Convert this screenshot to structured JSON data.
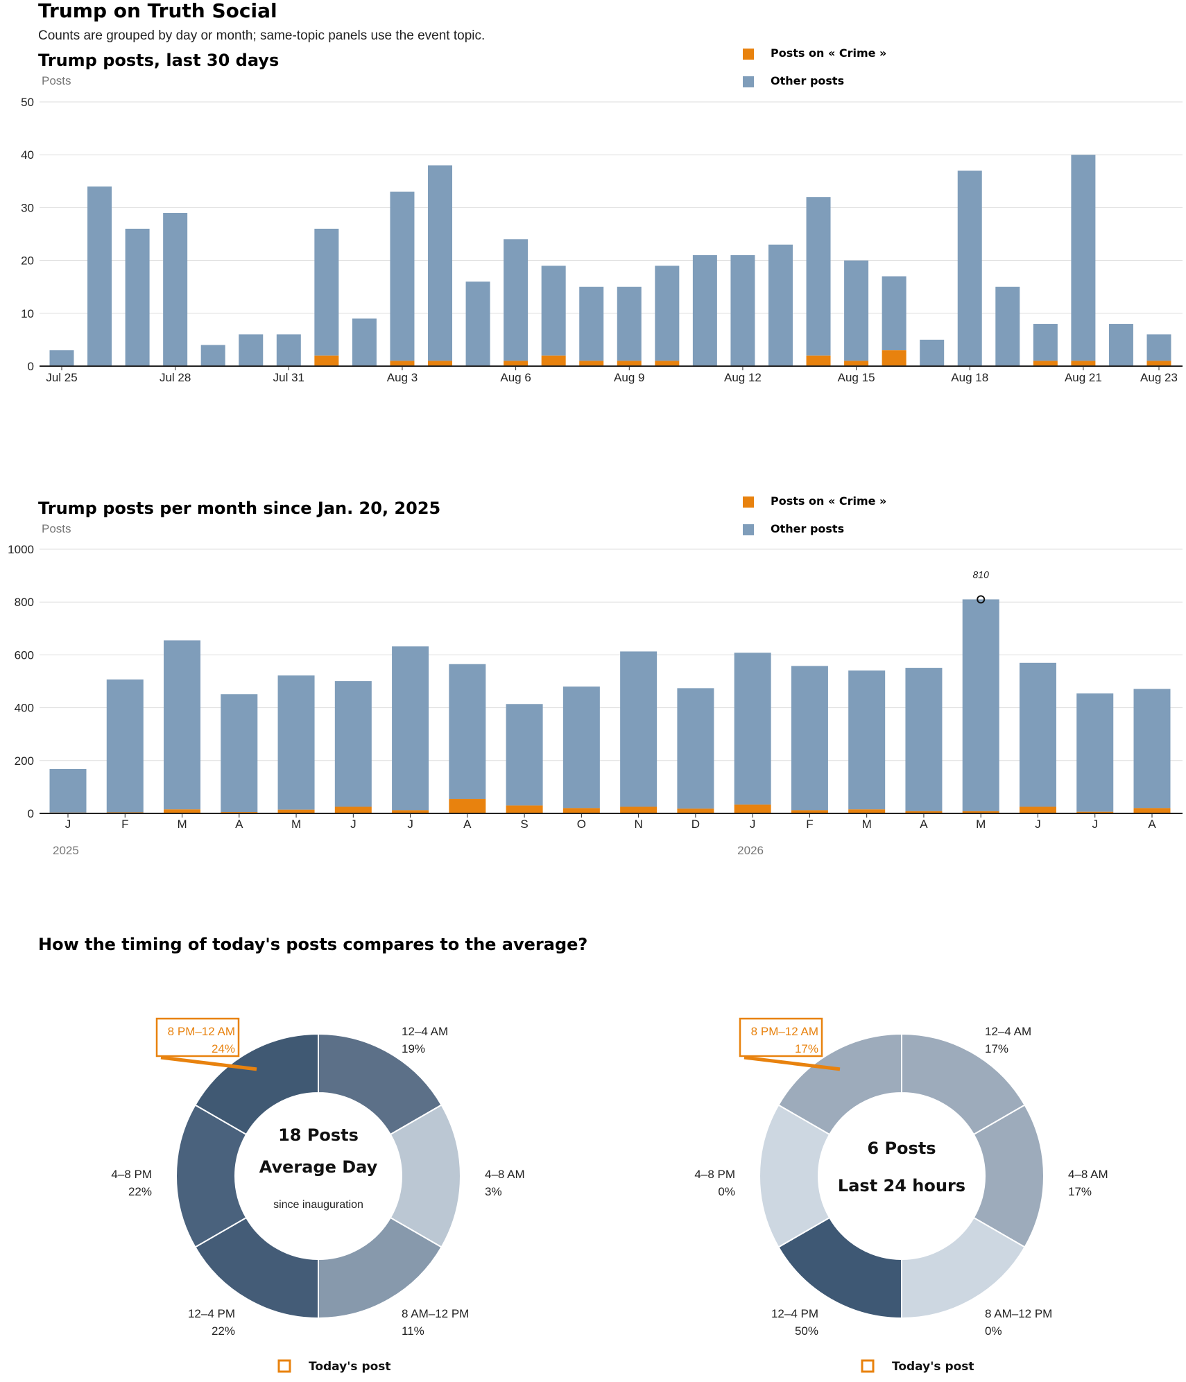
{
  "page": {
    "title": "Trump on Truth Social",
    "subtitle": "Counts are grouped by day or month; same-topic panels use the event topic."
  },
  "colors": {
    "topic": "#E8820E",
    "other": "#7F9DBA",
    "axis": "#222222",
    "grid": "#dddddd"
  },
  "legend": {
    "topic_label": "Posts on « Crime »",
    "other_label": "Other posts"
  },
  "chart_data": [
    {
      "type": "bar",
      "title": "Trump posts, last 30 days",
      "ylabel": "Posts",
      "ylim": [
        0,
        50
      ],
      "yticks": [
        0,
        10,
        20,
        30,
        40,
        50
      ],
      "stacked": true,
      "categories": [
        "Jul 25",
        "Jul 26",
        "Jul 27",
        "Jul 28",
        "Jul 29",
        "Jul 30",
        "Jul 31",
        "Aug 1",
        "Aug 2",
        "Aug 3",
        "Aug 4",
        "Aug 5",
        "Aug 6",
        "Aug 7",
        "Aug 8",
        "Aug 9",
        "Aug 10",
        "Aug 11",
        "Aug 12",
        "Aug 13",
        "Aug 14",
        "Aug 15",
        "Aug 16",
        "Aug 17",
        "Aug 18",
        "Aug 19",
        "Aug 20",
        "Aug 21",
        "Aug 22",
        "Aug 23"
      ],
      "tick_labels": [
        {
          "i": 0,
          "label": "Jul 25"
        },
        {
          "i": 3,
          "label": "Jul 28"
        },
        {
          "i": 6,
          "label": "Jul 31"
        },
        {
          "i": 9,
          "label": "Aug 3"
        },
        {
          "i": 12,
          "label": "Aug 6"
        },
        {
          "i": 15,
          "label": "Aug 9"
        },
        {
          "i": 18,
          "label": "Aug 12"
        },
        {
          "i": 21,
          "label": "Aug 15"
        },
        {
          "i": 24,
          "label": "Aug 18"
        },
        {
          "i": 27,
          "label": "Aug 21"
        },
        {
          "i": 29,
          "label": "Aug 23"
        }
      ],
      "series": [
        {
          "name": "Posts on « Crime »",
          "values": [
            0,
            0,
            0,
            0,
            0,
            0,
            0,
            2,
            0,
            1,
            1,
            0,
            1,
            2,
            1,
            1,
            1,
            0,
            0,
            0,
            2,
            1,
            3,
            0,
            0,
            0,
            1,
            1,
            0,
            1
          ]
        },
        {
          "name": "Other posts",
          "values": [
            3,
            34,
            26,
            29,
            4,
            6,
            6,
            24,
            9,
            32,
            37,
            16,
            23,
            17,
            14,
            14,
            18,
            21,
            21,
            23,
            30,
            19,
            14,
            5,
            37,
            15,
            7,
            39,
            8,
            5
          ]
        }
      ]
    },
    {
      "type": "bar",
      "title": "Trump posts per month since Jan. 20, 2025",
      "ylabel": "Posts",
      "ylim": [
        0,
        1000
      ],
      "yticks": [
        0,
        200,
        400,
        600,
        800,
        1000
      ],
      "stacked": true,
      "categories": [
        "J",
        "F",
        "M",
        "A",
        "M",
        "J",
        "J",
        "A",
        "S",
        "O",
        "N",
        "D",
        "J",
        "F",
        "M",
        "A",
        "M",
        "J",
        "J",
        "A"
      ],
      "years": [
        {
          "i": 0,
          "label": "2025"
        },
        {
          "i": 12,
          "label": "2026"
        }
      ],
      "annotation": {
        "i": 16,
        "label": "810"
      },
      "series": [
        {
          "name": "Posts on « Crime »",
          "values": [
            3,
            4,
            15,
            5,
            14,
            25,
            12,
            55,
            30,
            20,
            25,
            18,
            33,
            12,
            15,
            8,
            8,
            25,
            6,
            20
          ]
        },
        {
          "name": "Other posts",
          "values": [
            165,
            503,
            640,
            446,
            508,
            476,
            620,
            510,
            384,
            460,
            588,
            456,
            575,
            546,
            526,
            543,
            802,
            545,
            448,
            451
          ]
        }
      ]
    },
    {
      "type": "pie",
      "title": "How the timing of today's posts compares to the average?",
      "donuts": [
        {
          "center_lines": [
            "18 Posts",
            "Average Day"
          ],
          "center_sub": "since inauguration",
          "highlight_index": 5,
          "slices": [
            {
              "label": "12–4 AM",
              "pct_label": "19%",
              "value": 19,
              "color": "#5C7088"
            },
            {
              "label": "4–8 AM",
              "pct_label": "3%",
              "value": 3,
              "color": "#BBC7D3"
            },
            {
              "label": "8 AM–12 PM",
              "pct_label": "11%",
              "value": 11,
              "color": "#8799AC"
            },
            {
              "label": "12–4 PM",
              "pct_label": "22%",
              "value": 22,
              "color": "#445C77"
            },
            {
              "label": "4–8 PM",
              "pct_label": "22%",
              "value": 22,
              "color": "#4A627D"
            },
            {
              "label": "8 PM–12 AM",
              "pct_label": "24%",
              "value": 24,
              "color": "#405973"
            }
          ],
          "legend_label": "Today's post"
        },
        {
          "center_lines": [
            "6 Posts",
            "Last 24 hours"
          ],
          "center_sub": "",
          "highlight_index": 5,
          "slices": [
            {
              "label": "12–4 AM",
              "pct_label": "17%",
              "value": 17,
              "color": "#9DABBB"
            },
            {
              "label": "4–8 AM",
              "pct_label": "17%",
              "value": 17,
              "color": "#9DABBB"
            },
            {
              "label": "8 AM–12 PM",
              "pct_label": "0%",
              "value": 0,
              "color": "#CDD7E1"
            },
            {
              "label": "12–4 PM",
              "pct_label": "50%",
              "value": 50,
              "color": "#3E5874"
            },
            {
              "label": "4–8 PM",
              "pct_label": "0%",
              "value": 0,
              "color": "#CDD7E1"
            },
            {
              "label": "8 PM–12 AM",
              "pct_label": "17%",
              "value": 17,
              "color": "#9DABBB"
            }
          ],
          "legend_label": "Today's post"
        }
      ]
    }
  ]
}
